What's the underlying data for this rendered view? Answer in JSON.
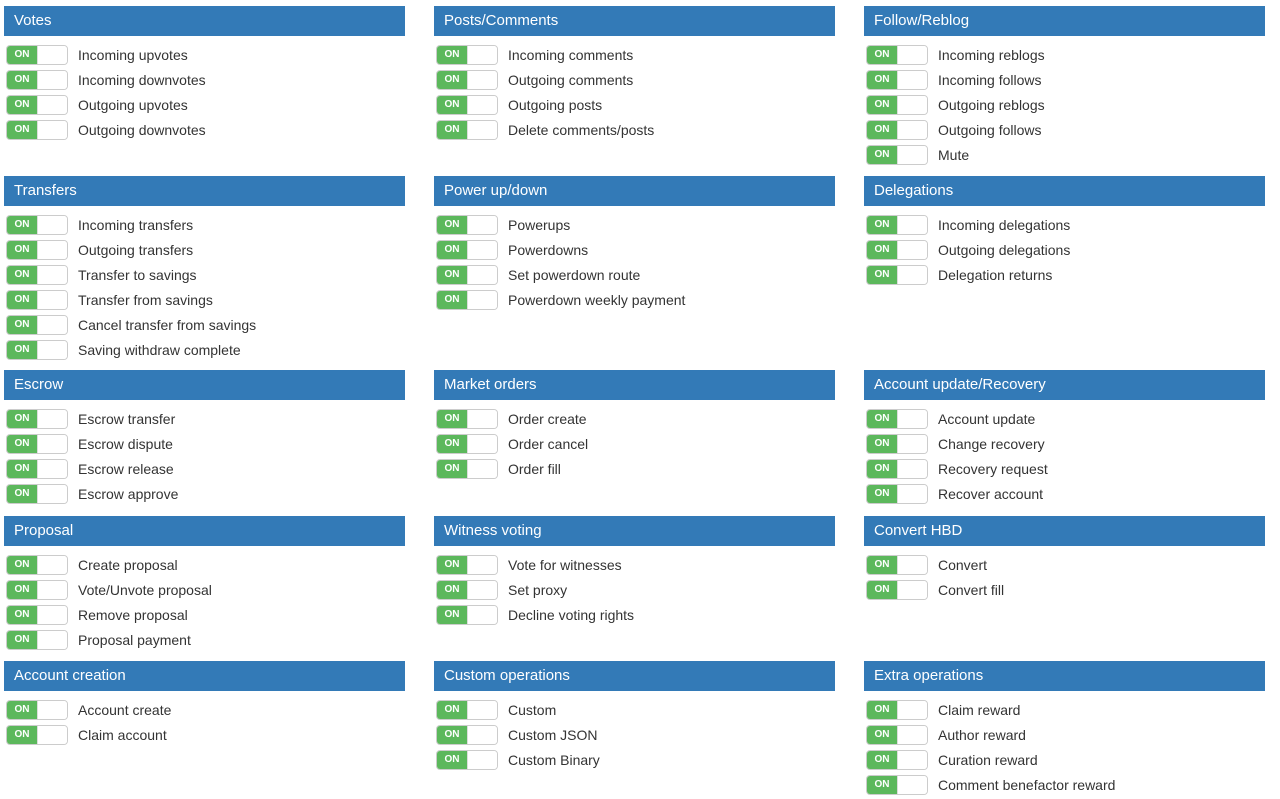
{
  "switch_on_label": "ON",
  "colors": {
    "header_bg": "#337ab7",
    "header_text": "#ffffff",
    "switch_on": "#5cb85c",
    "label_text": "#333333"
  },
  "sections": [
    {
      "id": "votes",
      "title": "Votes",
      "items": [
        "Incoming upvotes",
        "Incoming downvotes",
        "Outgoing upvotes",
        "Outgoing downvotes"
      ]
    },
    {
      "id": "posts-comments",
      "title": "Posts/Comments",
      "items": [
        "Incoming comments",
        "Outgoing comments",
        "Outgoing posts",
        "Delete comments/posts"
      ]
    },
    {
      "id": "follow-reblog",
      "title": "Follow/Reblog",
      "items": [
        "Incoming reblogs",
        "Incoming follows",
        "Outgoing reblogs",
        "Outgoing follows",
        "Mute"
      ]
    },
    {
      "id": "transfers",
      "title": "Transfers",
      "items": [
        "Incoming transfers",
        "Outgoing transfers",
        "Transfer to savings",
        "Transfer from savings",
        "Cancel transfer from savings",
        "Saving withdraw complete"
      ]
    },
    {
      "id": "power-up-down",
      "title": "Power up/down",
      "items": [
        "Powerups",
        "Powerdowns",
        "Set powerdown route",
        "Powerdown weekly payment"
      ]
    },
    {
      "id": "delegations",
      "title": "Delegations",
      "items": [
        "Incoming delegations",
        "Outgoing delegations",
        "Delegation returns"
      ]
    },
    {
      "id": "escrow",
      "title": "Escrow",
      "items": [
        "Escrow transfer",
        "Escrow dispute",
        "Escrow release",
        "Escrow approve"
      ]
    },
    {
      "id": "market-orders",
      "title": "Market orders",
      "items": [
        "Order create",
        "Order cancel",
        "Order fill"
      ]
    },
    {
      "id": "account-update-recovery",
      "title": "Account update/Recovery",
      "items": [
        "Account update",
        "Change recovery",
        "Recovery request",
        "Recover account"
      ]
    },
    {
      "id": "proposal",
      "title": "Proposal",
      "items": [
        "Create proposal",
        "Vote/Unvote proposal",
        "Remove proposal",
        "Proposal payment"
      ]
    },
    {
      "id": "witness-voting",
      "title": "Witness voting",
      "items": [
        "Vote for witnesses",
        "Set proxy",
        "Decline voting rights"
      ]
    },
    {
      "id": "convert-hbd",
      "title": "Convert HBD",
      "items": [
        "Convert",
        "Convert fill"
      ]
    },
    {
      "id": "account-creation",
      "title": "Account creation",
      "items": [
        "Account create",
        "Claim account"
      ]
    },
    {
      "id": "custom-operations",
      "title": "Custom operations",
      "items": [
        "Custom",
        "Custom JSON",
        "Custom Binary"
      ]
    },
    {
      "id": "extra-operations",
      "title": "Extra operations",
      "items": [
        "Claim reward",
        "Author reward",
        "Curation reward",
        "Comment benefactor reward"
      ]
    }
  ]
}
